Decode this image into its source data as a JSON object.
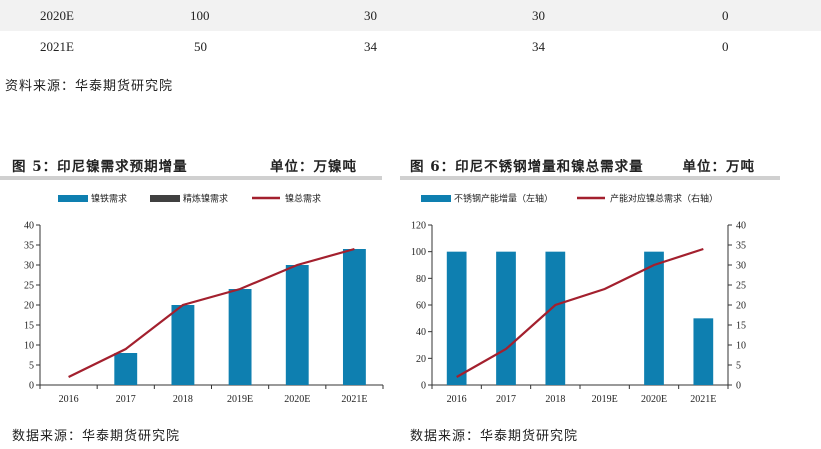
{
  "table": {
    "rows": [
      [
        "2020E",
        "100",
        "30",
        "30",
        "0"
      ],
      [
        "2021E",
        "50",
        "34",
        "34",
        "0"
      ]
    ]
  },
  "table_source": "资料来源：华泰期货研究院",
  "colors": {
    "bar": "#0e7fb0",
    "line": "#a3202e",
    "refined": "#404040",
    "row_bg": "#f2f2f2"
  },
  "chart_data": [
    {
      "type": "bar",
      "title": "图 5：印尼镍需求预期增量",
      "unit": "单位：万镍吨",
      "categories": [
        "2016",
        "2017",
        "2018",
        "2019E",
        "2020E",
        "2021E"
      ],
      "ylim": [
        0,
        40
      ],
      "yticks": [
        0,
        5,
        10,
        15,
        20,
        25,
        30,
        35,
        40
      ],
      "series": [
        {
          "name": "镍铁需求",
          "type": "bar",
          "values": [
            0,
            8,
            20,
            24,
            30,
            34
          ]
        },
        {
          "name": "精炼镍需求",
          "type": "bar",
          "values": [
            0,
            0,
            0,
            0,
            0,
            0
          ]
        },
        {
          "name": "镍总需求",
          "type": "line",
          "values": [
            2,
            9,
            20,
            24,
            30,
            34
          ]
        }
      ],
      "legend": "top",
      "source": "数据来源：华泰期货研究院"
    },
    {
      "type": "bar",
      "title": "图 6：印尼不锈钢增量和镍总需求量",
      "unit": "单位：万吨",
      "categories": [
        "2016",
        "2017",
        "2018",
        "2019E",
        "2020E",
        "2021E"
      ],
      "ylim": [
        0,
        120
      ],
      "yticks": [
        0,
        20,
        40,
        60,
        80,
        100,
        120
      ],
      "y2lim": [
        0,
        40
      ],
      "y2ticks": [
        0,
        5,
        10,
        15,
        20,
        25,
        30,
        35,
        40
      ],
      "series": [
        {
          "name": "不锈钢产能增量（左轴）",
          "type": "bar",
          "axis": "left",
          "values": [
            100,
            100,
            100,
            0,
            100,
            50
          ]
        },
        {
          "name": "产能对应镍总需求（右轴）",
          "type": "line",
          "axis": "right",
          "values": [
            2,
            9,
            20,
            24,
            30,
            34
          ]
        }
      ],
      "legend": "top",
      "source": "数据来源：华泰期货研究院"
    }
  ]
}
